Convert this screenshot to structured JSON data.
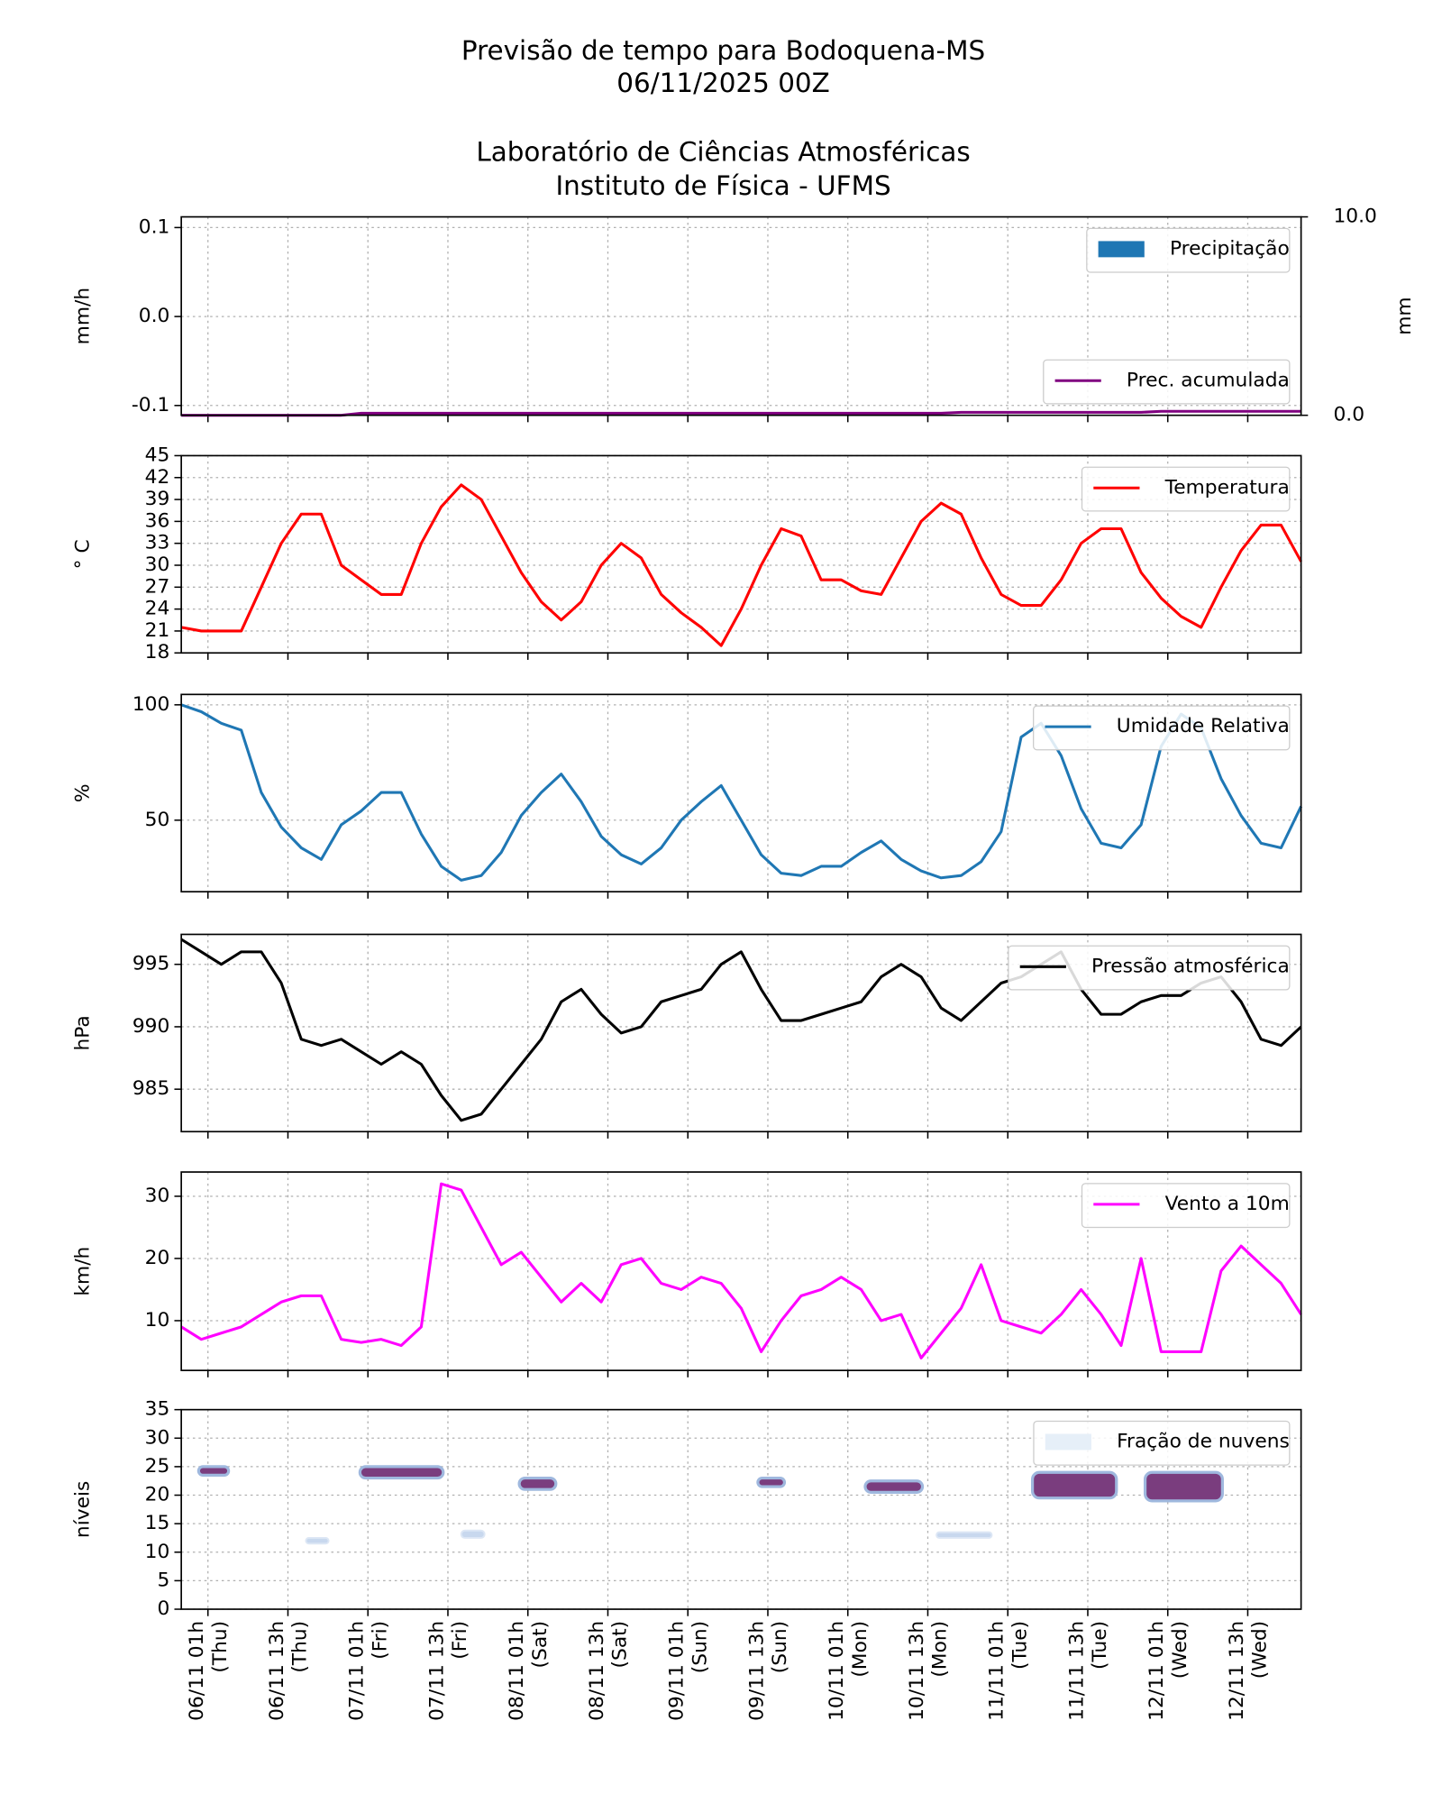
{
  "title_lines": [
    "Previsão de tempo para Bodoquena-MS",
    "06/11/2025 00Z",
    "Laboratório de Ciências Atmosféricas",
    "Instituto de Física - UFMS"
  ],
  "chart_data": [
    {
      "type": "bar",
      "ylabel": "mm/h",
      "y2label": "mm",
      "xlim": [
        -3,
        165
      ],
      "xticks": [
        1,
        13,
        25,
        37,
        49,
        61,
        73,
        85,
        97,
        109,
        121,
        133,
        145,
        157
      ],
      "ylim": [
        -0.111,
        0.112
      ],
      "yticks": [
        -0.1,
        {
          "value": 0,
          "label": "0.0"
        },
        0.1
      ],
      "y2lim": [
        0,
        10
      ],
      "y2ticks": [
        {
          "value": 0,
          "label": "0.0"
        },
        {
          "value": 10,
          "label": "10.0"
        }
      ],
      "grid": true,
      "legend": "upper right",
      "x": [
        -3,
        0,
        3,
        6,
        9,
        12,
        15,
        18,
        21,
        24,
        27,
        30,
        33,
        36,
        39,
        42,
        45,
        48,
        51,
        54,
        57,
        60,
        63,
        66,
        69,
        72,
        75,
        78,
        81,
        84,
        87,
        90,
        93,
        96,
        99,
        102,
        105,
        108,
        111,
        114,
        117,
        120,
        123,
        126,
        129,
        132,
        135,
        138,
        141,
        144,
        147,
        150,
        153,
        156,
        159,
        162,
        165
      ],
      "series": [
        {
          "name": "Precipitação",
          "type": "bar",
          "color": "#1f77b4",
          "values": [
            0,
            0,
            0,
            0,
            0,
            0,
            0,
            0,
            0,
            0,
            0,
            0,
            0,
            0,
            0,
            0,
            0,
            0,
            0,
            0,
            0,
            0,
            0,
            0,
            0,
            0,
            0,
            0,
            0,
            0,
            0,
            0,
            0,
            0,
            0,
            0,
            0,
            0,
            0,
            0,
            0,
            0,
            0,
            0,
            0,
            0,
            0,
            0,
            0,
            0,
            0,
            0,
            0,
            0,
            0,
            0,
            0
          ]
        },
        {
          "name": "Prec. acumulada",
          "type": "line",
          "axis": "y2",
          "legend": "lower right",
          "color": "#800080",
          "values": [
            0,
            0,
            0,
            0,
            0,
            0,
            0,
            0,
            0,
            0.1,
            0.1,
            0.1,
            0.1,
            0.1,
            0.1,
            0.1,
            0.1,
            0.1,
            0.1,
            0.1,
            0.1,
            0.1,
            0.1,
            0.1,
            0.1,
            0.1,
            0.1,
            0.1,
            0.1,
            0.1,
            0.1,
            0.1,
            0.1,
            0.1,
            0.1,
            0.1,
            0.1,
            0.1,
            0.1,
            0.15,
            0.15,
            0.15,
            0.15,
            0.15,
            0.15,
            0.15,
            0.15,
            0.15,
            0.15,
            0.2,
            0.2,
            0.2,
            0.2,
            0.2,
            0.2,
            0.2,
            0.2
          ]
        }
      ]
    },
    {
      "type": "line",
      "ylabel": "° C",
      "xlim": [
        -3,
        165
      ],
      "xticks": [
        1,
        13,
        25,
        37,
        49,
        61,
        73,
        85,
        97,
        109,
        121,
        133,
        145,
        157
      ],
      "ylim": [
        18,
        45
      ],
      "yticks": [
        18,
        21,
        24,
        27,
        30,
        33,
        36,
        39,
        42,
        45
      ],
      "grid": true,
      "legend": "upper right",
      "x": [
        -3,
        0,
        3,
        6,
        9,
        12,
        15,
        18,
        21,
        24,
        27,
        30,
        33,
        36,
        39,
        42,
        45,
        48,
        51,
        54,
        57,
        60,
        63,
        66,
        69,
        72,
        75,
        78,
        81,
        84,
        87,
        90,
        93,
        96,
        99,
        102,
        105,
        108,
        111,
        114,
        117,
        120,
        123,
        126,
        129,
        132,
        135,
        138,
        141,
        144,
        147,
        150,
        153,
        156,
        159,
        162,
        165
      ],
      "series": [
        {
          "name": "Temperatura",
          "color": "#ff0000",
          "values": [
            21.5,
            21,
            21,
            21,
            27,
            33,
            37,
            37,
            30,
            28,
            26,
            26,
            33,
            38,
            41,
            39,
            34,
            29,
            25,
            22.5,
            25,
            30,
            33,
            31,
            26,
            23.5,
            21.5,
            19,
            24,
            30,
            35,
            34,
            28,
            28,
            26.5,
            26,
            31,
            36,
            38.5,
            37,
            31,
            26,
            24.5,
            24.5,
            28,
            33,
            35,
            35,
            29,
            25.5,
            23,
            21.5,
            27,
            32,
            35.5,
            35.5,
            30.5
          ]
        }
      ]
    },
    {
      "type": "line",
      "ylabel": "%",
      "xlim": [
        -3,
        165
      ],
      "xticks": [
        1,
        13,
        25,
        37,
        49,
        61,
        73,
        85,
        97,
        109,
        121,
        133,
        145,
        157
      ],
      "ylim": [
        19,
        104.5
      ],
      "yticks": [
        50,
        100
      ],
      "grid": true,
      "legend": "upper right",
      "x": [
        -3,
        0,
        3,
        6,
        9,
        12,
        15,
        18,
        21,
        24,
        27,
        30,
        33,
        36,
        39,
        42,
        45,
        48,
        51,
        54,
        57,
        60,
        63,
        66,
        69,
        72,
        75,
        78,
        81,
        84,
        87,
        90,
        93,
        96,
        99,
        102,
        105,
        108,
        111,
        114,
        117,
        120,
        123,
        126,
        129,
        132,
        135,
        138,
        141,
        144,
        147,
        150,
        153,
        156,
        159,
        162,
        165
      ],
      "series": [
        {
          "name": "Umidade Relativa",
          "color": "#1f77b4",
          "values": [
            100,
            97,
            92,
            89,
            62,
            47,
            38,
            33,
            48,
            54,
            62,
            62,
            44,
            30,
            24,
            26,
            36,
            52,
            62,
            70,
            58,
            43,
            35,
            31,
            38,
            50,
            58,
            65,
            50,
            35,
            27,
            26,
            30,
            30,
            36,
            41,
            33,
            28,
            25,
            26,
            32,
            45,
            86,
            92,
            78,
            55,
            40,
            38,
            48,
            82,
            96,
            90,
            68,
            52,
            40,
            38,
            56
          ]
        }
      ]
    },
    {
      "type": "line",
      "ylabel": "hPa",
      "xlim": [
        -3,
        165
      ],
      "xticks": [
        1,
        13,
        25,
        37,
        49,
        61,
        73,
        85,
        97,
        109,
        121,
        133,
        145,
        157
      ],
      "ylim": [
        981.6,
        997.4
      ],
      "yticks": [
        985,
        990,
        995
      ],
      "grid": true,
      "legend": "upper right",
      "x": [
        -3,
        0,
        3,
        6,
        9,
        12,
        15,
        18,
        21,
        24,
        27,
        30,
        33,
        36,
        39,
        42,
        45,
        48,
        51,
        54,
        57,
        60,
        63,
        66,
        69,
        72,
        75,
        78,
        81,
        84,
        87,
        90,
        93,
        96,
        99,
        102,
        105,
        108,
        111,
        114,
        117,
        120,
        123,
        126,
        129,
        132,
        135,
        138,
        141,
        144,
        147,
        150,
        153,
        156,
        159,
        162,
        165
      ],
      "series": [
        {
          "name": "Pressão atmosférica",
          "color": "#000000",
          "values": [
            997,
            996,
            995,
            996,
            996,
            993.5,
            989,
            988.5,
            989,
            988,
            987,
            988,
            987,
            984.5,
            982.5,
            983,
            985,
            987,
            989,
            992,
            993,
            991,
            989.5,
            990,
            992,
            992.5,
            993,
            995,
            996,
            993,
            990.5,
            990.5,
            991,
            991.5,
            992,
            994,
            995,
            994,
            991.5,
            990.5,
            992,
            993.5,
            994,
            995,
            996,
            993,
            991,
            991,
            992,
            992.5,
            992.5,
            993.5,
            994,
            992,
            989,
            988.5,
            990
          ]
        }
      ]
    },
    {
      "type": "line",
      "ylabel": "km/h",
      "xlim": [
        -3,
        165
      ],
      "xticks": [
        1,
        13,
        25,
        37,
        49,
        61,
        73,
        85,
        97,
        109,
        121,
        133,
        145,
        157
      ],
      "ylim": [
        2,
        33.9
      ],
      "yticks": [
        10,
        20,
        30
      ],
      "grid": true,
      "legend": "upper right",
      "x": [
        -3,
        0,
        3,
        6,
        9,
        12,
        15,
        18,
        21,
        24,
        27,
        30,
        33,
        36,
        39,
        42,
        45,
        48,
        51,
        54,
        57,
        60,
        63,
        66,
        69,
        72,
        75,
        78,
        81,
        84,
        87,
        90,
        93,
        96,
        99,
        102,
        105,
        108,
        111,
        114,
        117,
        120,
        123,
        126,
        129,
        132,
        135,
        138,
        141,
        144,
        147,
        150,
        153,
        156,
        159,
        162,
        165
      ],
      "series": [
        {
          "name": "Vento a 10m",
          "color": "#ff00ff",
          "values": [
            9,
            7,
            8,
            9,
            11,
            13,
            14,
            14,
            7,
            6.5,
            7,
            6,
            9,
            32,
            31,
            25,
            19,
            21,
            17,
            13,
            16,
            13,
            19,
            20,
            16,
            15,
            17,
            16,
            12,
            5,
            10,
            14,
            15,
            17,
            15,
            10,
            11,
            4,
            8,
            12,
            19,
            10,
            9,
            8,
            11,
            15,
            11,
            6,
            20,
            5,
            5,
            5,
            18,
            22,
            19,
            16,
            11
          ]
        }
      ]
    },
    {
      "type": "contour",
      "ylabel": "níveis",
      "xlim": [
        -3,
        165
      ],
      "xticks": [
        {
          "value": 1,
          "label": "06/11 01h",
          "day": "(Thu)"
        },
        {
          "value": 13,
          "label": "06/11 13h",
          "day": "(Thu)"
        },
        {
          "value": 25,
          "label": "07/11 01h",
          "day": "(Fri)"
        },
        {
          "value": 37,
          "label": "07/11 13h",
          "day": "(Fri)"
        },
        {
          "value": 49,
          "label": "08/11 01h",
          "day": "(Sat)"
        },
        {
          "value": 61,
          "label": "08/11 13h",
          "day": "(Sat)"
        },
        {
          "value": 73,
          "label": "09/11 01h",
          "day": "(Sun)"
        },
        {
          "value": 85,
          "label": "09/11 13h",
          "day": "(Sun)"
        },
        {
          "value": 97,
          "label": "10/11 01h",
          "day": "(Mon)"
        },
        {
          "value": 109,
          "label": "10/11 13h",
          "day": "(Mon)"
        },
        {
          "value": 121,
          "label": "11/11 01h",
          "day": "(Tue)"
        },
        {
          "value": 133,
          "label": "11/11 13h",
          "day": "(Tue)"
        },
        {
          "value": 145,
          "label": "12/11 01h",
          "day": "(Wed)"
        },
        {
          "value": 157,
          "label": "12/11 13h",
          "day": "(Wed)"
        }
      ],
      "ylim": [
        0,
        35
      ],
      "yticks": [
        0,
        5,
        10,
        15,
        20,
        25,
        30,
        35
      ],
      "grid": true,
      "legend": "upper right",
      "series": [
        {
          "name": "Fração de nuvens",
          "color": "#e6eff8",
          "patches": [
            {
              "x": [
                -0.4,
                4.1
              ],
              "levels": [
                23.5,
                25
              ],
              "fraction": 1
            },
            {
              "x": [
                23.8,
                36.3
              ],
              "levels": [
                23,
                25
              ],
              "fraction": 1
            },
            {
              "x": [
                47.7,
                53.2
              ],
              "levels": [
                21,
                23
              ],
              "fraction": 1
            },
            {
              "x": [
                83.5,
                87.5
              ],
              "levels": [
                21.5,
                23
              ],
              "fraction": 1
            },
            {
              "x": [
                99.6,
                108.2
              ],
              "levels": [
                20.5,
                22.5
              ],
              "fraction": 1
            },
            {
              "x": [
                124.7,
                137.3
              ],
              "levels": [
                19.5,
                24
              ],
              "fraction": 1
            },
            {
              "x": [
                141.6,
                153.2
              ],
              "levels": [
                19,
                24
              ],
              "fraction": 1
            },
            {
              "x": [
                15.7,
                19.1
              ],
              "levels": [
                11.5,
                12.5
              ],
              "fraction": 0.3
            },
            {
              "x": [
                39,
                42.5
              ],
              "levels": [
                12.5,
                13.8
              ],
              "fraction": 0.5
            },
            {
              "x": [
                110.3,
                118.6
              ],
              "levels": [
                12.5,
                13.5
              ],
              "fraction": 0.5
            }
          ]
        }
      ]
    }
  ]
}
